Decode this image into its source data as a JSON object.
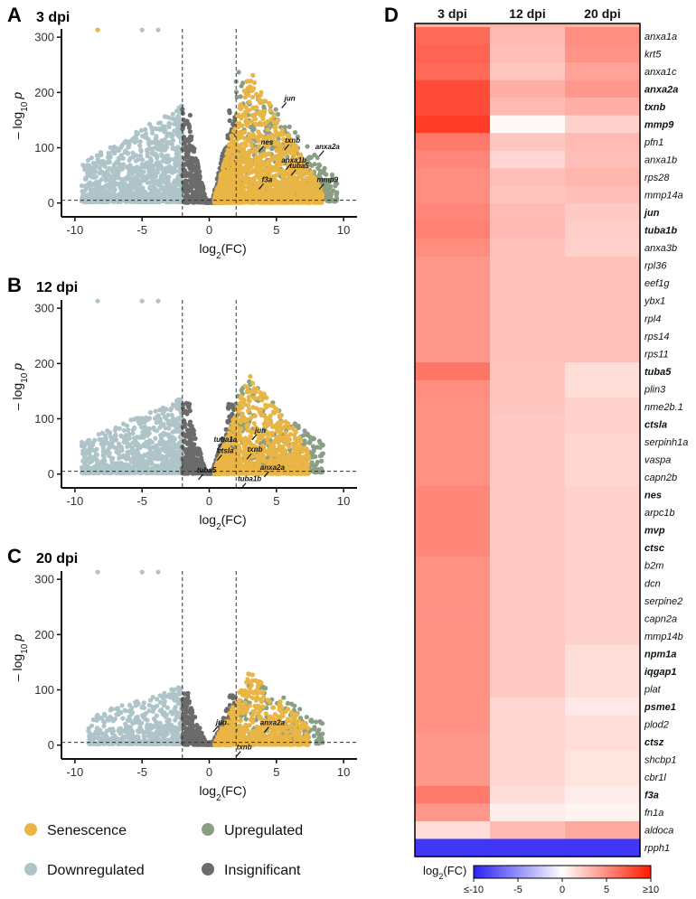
{
  "colors": {
    "senescence": "#E9B544",
    "upregulated": "#8A9E86",
    "downregulated": "#AFC4C8",
    "insignificant": "#6B6B6B",
    "heatmap_low": "#2A20F5",
    "heatmap_mid": "#FFFFFF",
    "heatmap_high": "#FF1A00"
  },
  "legend": {
    "items": [
      {
        "label": "Senescence",
        "color_key": "senescence"
      },
      {
        "label": "Upregulated",
        "color_key": "upregulated"
      },
      {
        "label": "Downregulated",
        "color_key": "downregulated"
      },
      {
        "label": "Insignificant",
        "color_key": "insignificant"
      }
    ]
  },
  "chart_data": [
    {
      "type": "scatter",
      "panel": "A",
      "title": "3 dpi",
      "xlabel_base": "log",
      "xlabel_sub": "2",
      "xlabel_rest": "(FC)",
      "ylabel_base": "– log",
      "ylabel_sub": "10",
      "ylabel_var": "p",
      "xlim": [
        -11,
        11
      ],
      "ylim": [
        -25,
        315
      ],
      "xticks": [
        -10,
        -5,
        0,
        5,
        10
      ],
      "xtick_labels": [
        "-10",
        "-5",
        "0",
        "5",
        "10"
      ],
      "yticks": [
        0,
        100,
        200,
        300
      ],
      "ytick_labels": [
        "0",
        "100",
        "200",
        "300"
      ],
      "fc_threshold": 2,
      "p_threshold": 5,
      "annotations": [
        {
          "label": "jun",
          "x": 6.0,
          "y": 185
        },
        {
          "label": "nes",
          "x": 4.3,
          "y": 106
        },
        {
          "label": "txnb",
          "x": 6.2,
          "y": 109
        },
        {
          "label": "anxa2a",
          "x": 8.8,
          "y": 98
        },
        {
          "label": "anxa1b",
          "x": 6.3,
          "y": 73
        },
        {
          "label": "tuba5",
          "x": 6.7,
          "y": 63
        },
        {
          "label": "f3a",
          "x": 4.3,
          "y": 38
        },
        {
          "label": "mmp9",
          "x": 8.8,
          "y": 38
        }
      ]
    },
    {
      "type": "scatter",
      "panel": "B",
      "title": "12 dpi",
      "xlabel_base": "log",
      "xlabel_sub": "2",
      "xlabel_rest": "(FC)",
      "ylabel_base": "– log",
      "ylabel_sub": "10",
      "ylabel_var": "p",
      "xlim": [
        -11,
        11
      ],
      "ylim": [
        -25,
        315
      ],
      "xticks": [
        -10,
        -5,
        0,
        5,
        10
      ],
      "xtick_labels": [
        "-10",
        "-5",
        "0",
        "5",
        "10"
      ],
      "yticks": [
        0,
        100,
        200,
        300
      ],
      "ytick_labels": [
        "0",
        "100",
        "200",
        "300"
      ],
      "fc_threshold": 2,
      "p_threshold": 5,
      "annotations": [
        {
          "label": "jun",
          "x": 3.8,
          "y": 75
        },
        {
          "label": "tuba1a",
          "x": 1.2,
          "y": 58
        },
        {
          "label": "ctsla",
          "x": 1.2,
          "y": 38
        },
        {
          "label": "txnb",
          "x": 3.4,
          "y": 40
        },
        {
          "label": "tuba5",
          "x": -0.2,
          "y": 3
        },
        {
          "label": "anxa2a",
          "x": 4.7,
          "y": 8
        },
        {
          "label": "tuba1b",
          "x": 3.0,
          "y": -13
        }
      ]
    },
    {
      "type": "scatter",
      "panel": "C",
      "title": "20 dpi",
      "xlabel_base": "log",
      "xlabel_sub": "2",
      "xlabel_rest": "(FC)",
      "ylabel_base": "– log",
      "ylabel_sub": "10",
      "ylabel_var": "p",
      "xlim": [
        -11,
        11
      ],
      "ylim": [
        -25,
        315
      ],
      "xticks": [
        -10,
        -5,
        0,
        5,
        10
      ],
      "xtick_labels": [
        "-10",
        "-5",
        "0",
        "5",
        "10"
      ],
      "yticks": [
        0,
        100,
        200,
        300
      ],
      "ytick_labels": [
        "0",
        "100",
        "200",
        "300"
      ],
      "fc_threshold": 2,
      "p_threshold": 5,
      "annotations": [
        {
          "label": "jun",
          "x": 0.9,
          "y": 37
        },
        {
          "label": "anxa2a",
          "x": 4.7,
          "y": 36
        },
        {
          "label": "txnb",
          "x": 2.6,
          "y": -8
        }
      ]
    },
    {
      "type": "heatmap",
      "panel": "D",
      "columns": [
        "3 dpi",
        "12 dpi",
        "20 dpi"
      ],
      "colorbar_title_base": "log",
      "colorbar_title_sub": "2",
      "colorbar_title_rest": "(FC)",
      "colorbar_ticks": [
        -10,
        -5,
        0,
        5,
        10
      ],
      "colorbar_tick_labels": [
        "≤-10",
        "-5",
        "0",
        "5",
        "≥10"
      ],
      "vmin": -10,
      "vmax": 10,
      "rows": [
        {
          "gene": "anxa1a",
          "bold": false,
          "values": [
            6.5,
            3.0,
            5.0
          ]
        },
        {
          "gene": "krt5",
          "bold": false,
          "values": [
            6.8,
            2.8,
            4.7
          ]
        },
        {
          "gene": "anxa1c",
          "bold": false,
          "values": [
            6.5,
            2.5,
            4.0
          ]
        },
        {
          "gene": "anxa2a",
          "bold": true,
          "values": [
            7.8,
            3.5,
            4.5
          ]
        },
        {
          "gene": "txnb",
          "bold": true,
          "values": [
            7.8,
            3.0,
            3.5
          ]
        },
        {
          "gene": "mmp9",
          "bold": true,
          "values": [
            8.5,
            0.3,
            2.0
          ]
        },
        {
          "gene": "pfn1",
          "bold": false,
          "values": [
            5.8,
            2.5,
            3.0
          ]
        },
        {
          "gene": "anxa1b",
          "bold": false,
          "values": [
            5.3,
            1.8,
            2.8
          ]
        },
        {
          "gene": "rps28",
          "bold": false,
          "values": [
            5.0,
            2.8,
            3.2
          ]
        },
        {
          "gene": "mmp14a",
          "bold": false,
          "values": [
            5.0,
            2.5,
            2.8
          ]
        },
        {
          "gene": "jun",
          "bold": true,
          "values": [
            5.3,
            3.0,
            2.3
          ]
        },
        {
          "gene": "tuba1b",
          "bold": true,
          "values": [
            5.5,
            3.0,
            2.2
          ]
        },
        {
          "gene": "anxa3b",
          "bold": false,
          "values": [
            5.0,
            2.7,
            2.0
          ]
        },
        {
          "gene": "rpl36",
          "bold": false,
          "values": [
            4.5,
            2.7,
            2.7
          ]
        },
        {
          "gene": "eef1g",
          "bold": false,
          "values": [
            4.5,
            2.7,
            2.7
          ]
        },
        {
          "gene": "ybx1",
          "bold": false,
          "values": [
            4.5,
            2.7,
            2.7
          ]
        },
        {
          "gene": "rpl4",
          "bold": false,
          "values": [
            4.5,
            2.7,
            2.7
          ]
        },
        {
          "gene": "rps14",
          "bold": false,
          "values": [
            4.5,
            2.7,
            2.7
          ]
        },
        {
          "gene": "rps11",
          "bold": false,
          "values": [
            4.5,
            2.7,
            2.7
          ]
        },
        {
          "gene": "tuba5",
          "bold": true,
          "values": [
            6.0,
            2.5,
            1.5
          ]
        },
        {
          "gene": "plin3",
          "bold": false,
          "values": [
            5.0,
            2.5,
            1.5
          ]
        },
        {
          "gene": "nme2b.1",
          "bold": false,
          "values": [
            4.8,
            2.5,
            2.0
          ]
        },
        {
          "gene": "ctsla",
          "bold": true,
          "values": [
            4.8,
            2.3,
            2.0
          ]
        },
        {
          "gene": "serpinh1a",
          "bold": false,
          "values": [
            4.8,
            2.3,
            1.8
          ]
        },
        {
          "gene": "vaspa",
          "bold": false,
          "values": [
            4.8,
            2.3,
            1.8
          ]
        },
        {
          "gene": "capn2b",
          "bold": false,
          "values": [
            4.8,
            2.3,
            1.8
          ]
        },
        {
          "gene": "nes",
          "bold": true,
          "values": [
            5.2,
            2.3,
            2.0
          ]
        },
        {
          "gene": "arpc1b",
          "bold": false,
          "values": [
            5.2,
            2.3,
            2.0
          ]
        },
        {
          "gene": "mvp",
          "bold": true,
          "values": [
            5.2,
            2.3,
            2.0
          ]
        },
        {
          "gene": "ctsc",
          "bold": true,
          "values": [
            5.2,
            2.3,
            2.0
          ]
        },
        {
          "gene": "b2m",
          "bold": false,
          "values": [
            4.8,
            2.3,
            2.0
          ]
        },
        {
          "gene": "dcn",
          "bold": false,
          "values": [
            4.8,
            2.3,
            2.0
          ]
        },
        {
          "gene": "serpine2",
          "bold": false,
          "values": [
            4.8,
            2.3,
            2.0
          ]
        },
        {
          "gene": "capn2a",
          "bold": false,
          "values": [
            4.8,
            2.3,
            2.0
          ]
        },
        {
          "gene": "mmp14b",
          "bold": false,
          "values": [
            4.8,
            2.3,
            2.0
          ]
        },
        {
          "gene": "npm1a",
          "bold": true,
          "values": [
            4.8,
            2.3,
            1.5
          ]
        },
        {
          "gene": "iqgap1",
          "bold": true,
          "values": [
            4.8,
            2.3,
            1.5
          ]
        },
        {
          "gene": "plat",
          "bold": false,
          "values": [
            4.8,
            2.3,
            1.5
          ]
        },
        {
          "gene": "psme1",
          "bold": true,
          "values": [
            4.8,
            1.8,
            1.0
          ]
        },
        {
          "gene": "plod2",
          "bold": false,
          "values": [
            4.8,
            1.8,
            1.5
          ]
        },
        {
          "gene": "ctsz",
          "bold": true,
          "values": [
            4.5,
            1.8,
            1.5
          ]
        },
        {
          "gene": "shcbp1",
          "bold": false,
          "values": [
            4.5,
            1.8,
            1.2
          ]
        },
        {
          "gene": "cbr1l",
          "bold": false,
          "values": [
            4.5,
            1.8,
            1.2
          ]
        },
        {
          "gene": "f3a",
          "bold": true,
          "values": [
            5.8,
            1.5,
            0.8
          ]
        },
        {
          "gene": "fn1a",
          "bold": false,
          "values": [
            4.5,
            0.8,
            0.5
          ]
        },
        {
          "gene": "aldoca",
          "bold": false,
          "values": [
            1.5,
            3.0,
            3.8
          ]
        },
        {
          "gene": "rpph1",
          "bold": false,
          "values": [
            -9.0,
            -9.0,
            -9.0
          ]
        }
      ]
    }
  ]
}
